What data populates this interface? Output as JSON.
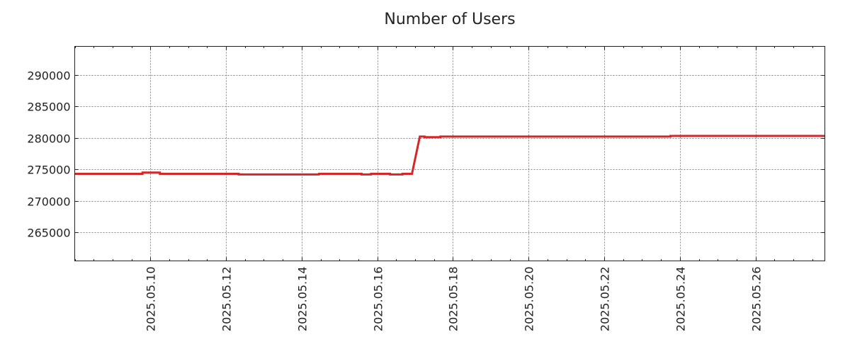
{
  "chart_data": {
    "type": "line",
    "title": "Number of Users",
    "xlabel": "",
    "ylabel": "",
    "xlim": [
      "2025-05-08T00:00",
      "2025-05-27T20:00"
    ],
    "ylim": [
      260500,
      294500
    ],
    "grid": true,
    "x_ticks": [
      "2025.05.10",
      "2025.05.12",
      "2025.05.14",
      "2025.05.16",
      "2025.05.18",
      "2025.05.20",
      "2025.05.22",
      "2025.05.24",
      "2025.05.26"
    ],
    "y_ticks": [
      265000,
      270000,
      275000,
      280000,
      285000,
      290000
    ],
    "series": [
      {
        "color": "#d62728",
        "x": [
          "2025-05-08T00:00",
          "2025-05-09T19:00",
          "2025-05-09T19:01",
          "2025-05-10T06:00",
          "2025-05-10T06:01",
          "2025-05-12T08:00",
          "2025-05-12T08:01",
          "2025-05-14T11:00",
          "2025-05-14T11:01",
          "2025-05-15T14:00",
          "2025-05-15T14:01",
          "2025-05-15T20:00",
          "2025-05-15T20:01",
          "2025-05-16T08:00",
          "2025-05-16T08:01",
          "2025-05-16T16:00",
          "2025-05-16T16:01",
          "2025-05-16T22:00",
          "2025-05-17T03:00",
          "2025-05-17T06:00",
          "2025-05-17T06:01",
          "2025-05-17T16:00",
          "2025-05-17T16:01",
          "2025-05-23T18:00",
          "2025-05-23T18:01",
          "2025-05-27T20:00"
        ],
        "y": [
          274300,
          274300,
          274500,
          274500,
          274300,
          274300,
          274200,
          274200,
          274300,
          274300,
          274200,
          274200,
          274300,
          274300,
          274200,
          274200,
          274300,
          274300,
          280200,
          280200,
          280100,
          280100,
          280200,
          280200,
          280300,
          280300
        ]
      }
    ]
  }
}
